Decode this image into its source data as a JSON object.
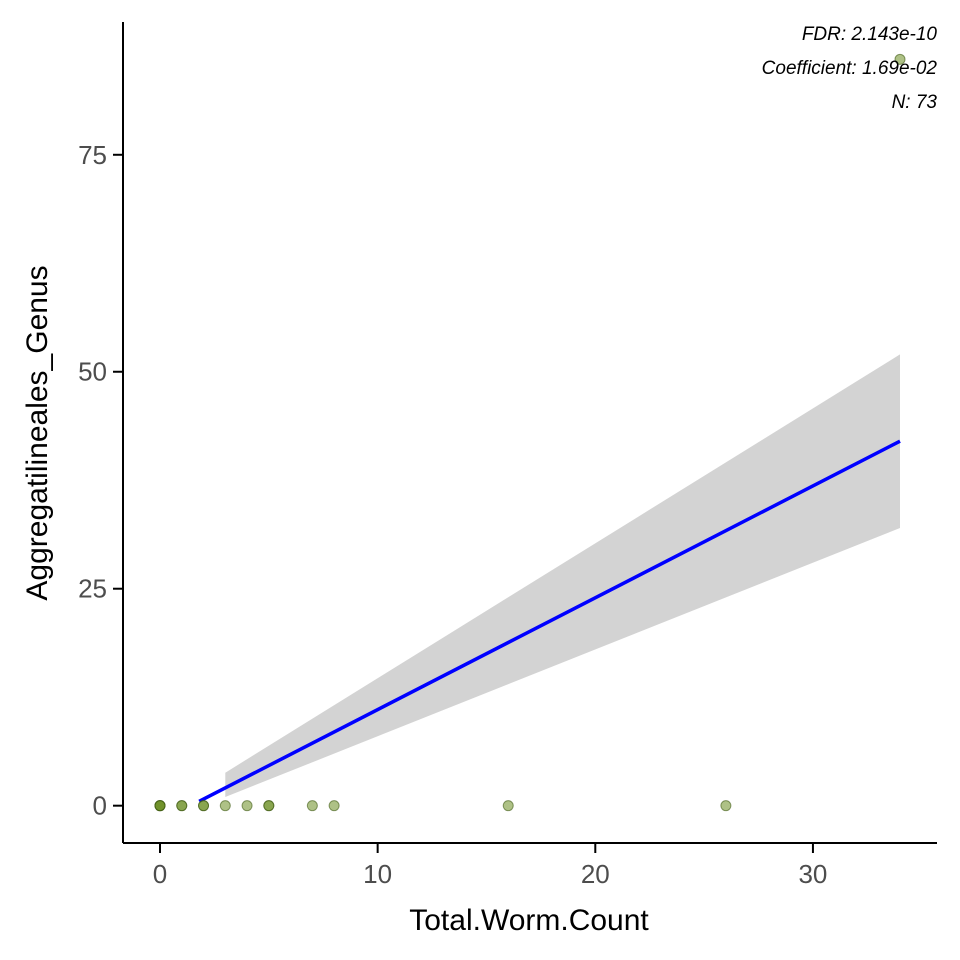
{
  "chart_data": {
    "type": "scatter",
    "xlabel": "Total.Worm.Count",
    "ylabel": "Aggregatilineales_Genus",
    "xlim": [
      -1.7,
      35.7
    ],
    "ylim": [
      -4.3,
      90.3
    ],
    "x_ticks": [
      0,
      10,
      20,
      30
    ],
    "y_ticks": [
      0,
      25,
      50,
      75
    ],
    "x_tick_labels": [
      "0",
      "10",
      "20",
      "30"
    ],
    "y_tick_labels": [
      "0",
      "25",
      "50",
      "75"
    ],
    "grid": false,
    "points": [
      {
        "x": 0,
        "y": 0
      },
      {
        "x": 0,
        "y": 0
      },
      {
        "x": 0,
        "y": 0
      },
      {
        "x": 0,
        "y": 0
      },
      {
        "x": 1,
        "y": 0
      },
      {
        "x": 1,
        "y": 0
      },
      {
        "x": 2,
        "y": 0
      },
      {
        "x": 2,
        "y": 0
      },
      {
        "x": 3,
        "y": 0
      },
      {
        "x": 4,
        "y": 0
      },
      {
        "x": 5,
        "y": 0
      },
      {
        "x": 5,
        "y": 0
      },
      {
        "x": 7,
        "y": 0
      },
      {
        "x": 8,
        "y": 0
      },
      {
        "x": 16,
        "y": 0
      },
      {
        "x": 26,
        "y": 0
      },
      {
        "x": 34,
        "y": 86
      }
    ],
    "fit_line": {
      "x": [
        1.8,
        34
      ],
      "y": [
        0.5,
        42
      ]
    },
    "confidence_band": {
      "x": [
        3,
        34
      ],
      "upper": [
        3.8,
        52
      ],
      "lower": [
        1.0,
        32
      ]
    },
    "annotations": [
      "FDR: 2.143e-10",
      "Coefficient: 1.69e-02",
      "N: 73"
    ],
    "colors": {
      "point_fill": "#6b8e23",
      "point_stroke": "#3d5a10",
      "fit_line": "#0000ff",
      "band": "#d3d3d3",
      "axis": "#000000"
    }
  }
}
